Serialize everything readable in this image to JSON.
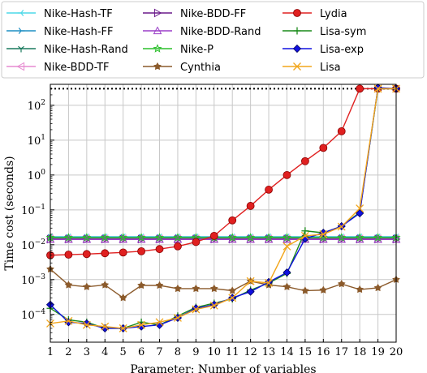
{
  "chart_data": {
    "type": "line",
    "xlabel": "Parameter: Number of variables",
    "ylabel": "Time cost (seconds)",
    "yscale": "log",
    "xlim": [
      1,
      20
    ],
    "ylim": [
      1.6e-05,
      400
    ],
    "grid": true,
    "legend_position": "top",
    "x_ticks": [
      1,
      2,
      3,
      4,
      5,
      6,
      7,
      8,
      9,
      10,
      11,
      12,
      13,
      14,
      15,
      16,
      17,
      18,
      19,
      20
    ],
    "y_ticks": [
      {
        "value": 0.0001,
        "base": "10",
        "exp": "−4"
      },
      {
        "value": 0.001,
        "base": "10",
        "exp": "−3"
      },
      {
        "value": 0.01,
        "base": "10",
        "exp": "−2"
      },
      {
        "value": 0.1,
        "base": "10",
        "exp": "−1"
      },
      {
        "value": 1,
        "base": "10",
        "exp": "0"
      },
      {
        "value": 10,
        "base": "10",
        "exp": "1"
      },
      {
        "value": 100,
        "base": "10",
        "exp": "2"
      }
    ],
    "timeout_line": {
      "y": 300,
      "style": "dotted",
      "color": "#000000"
    },
    "x": [
      1,
      2,
      3,
      4,
      5,
      6,
      7,
      8,
      9,
      10,
      11,
      12,
      13,
      14,
      15,
      16,
      17,
      18,
      19,
      20
    ],
    "series": [
      {
        "name": "Nike-Hash-TF",
        "color": "#4dd9e8",
        "marker": "tri_left",
        "values": [
          0.017,
          0.017,
          0.017,
          0.017,
          0.017,
          0.017,
          0.017,
          0.017,
          0.017,
          0.017,
          0.017,
          0.017,
          0.017,
          0.017,
          0.017,
          0.017,
          0.017,
          0.017,
          0.017,
          0.017
        ]
      },
      {
        "name": "Nike-Hash-FF",
        "color": "#1f8fc4",
        "marker": "tri_right",
        "values": [
          0.0165,
          0.0165,
          0.0165,
          0.0165,
          0.0165,
          0.0165,
          0.0165,
          0.0165,
          0.0165,
          0.0165,
          0.0165,
          0.0165,
          0.0165,
          0.0165,
          0.0165,
          0.0165,
          0.0165,
          0.0165,
          0.0165,
          0.0165
        ]
      },
      {
        "name": "Nike-Hash-Rand",
        "color": "#1a7a5e",
        "marker": "tri_down",
        "values": [
          0.0155,
          0.0155,
          0.0155,
          0.0155,
          0.0155,
          0.0155,
          0.0155,
          0.0155,
          0.0155,
          0.0155,
          0.0155,
          0.0155,
          0.0155,
          0.0155,
          0.0155,
          0.0155,
          0.0155,
          0.0155,
          0.0155,
          0.0155
        ]
      },
      {
        "name": "Nike-BDD-TF",
        "color": "#e68ad0",
        "marker": "triangle_left",
        "values": [
          0.0148,
          0.0148,
          0.0148,
          0.0148,
          0.0148,
          0.0148,
          0.0148,
          0.0148,
          0.0148,
          0.0148,
          0.0148,
          0.0148,
          0.0148,
          0.0148,
          0.0148,
          0.0148,
          0.0148,
          0.0148,
          0.0148,
          0.0148
        ]
      },
      {
        "name": "Nike-BDD-FF",
        "color": "#6a1a8a",
        "marker": "triangle_right",
        "values": [
          0.0145,
          0.0145,
          0.0145,
          0.0145,
          0.0145,
          0.0145,
          0.0145,
          0.0145,
          0.0145,
          0.0145,
          0.0145,
          0.0145,
          0.0145,
          0.0145,
          0.0145,
          0.0145,
          0.0145,
          0.0145,
          0.0145,
          0.0145
        ]
      },
      {
        "name": "Nike-BDD-Rand",
        "color": "#9b3fc8",
        "marker": "triangle_up",
        "values": [
          0.0142,
          0.0142,
          0.0142,
          0.0142,
          0.0142,
          0.0142,
          0.0142,
          0.0142,
          0.0142,
          0.0142,
          0.0142,
          0.0142,
          0.0142,
          0.0142,
          0.0142,
          0.0142,
          0.0142,
          0.0142,
          0.0142,
          0.0142
        ]
      },
      {
        "name": "Nike-P",
        "color": "#2bbf2b",
        "marker": "star",
        "values": [
          0.016,
          0.016,
          0.016,
          0.016,
          0.016,
          0.016,
          0.016,
          0.016,
          0.016,
          0.016,
          0.016,
          0.016,
          0.016,
          0.016,
          0.016,
          0.016,
          0.016,
          0.016,
          0.016,
          0.016
        ]
      },
      {
        "name": "Cynthia",
        "color": "#8b5a2b",
        "marker": "pentagon_star",
        "values": [
          0.002,
          0.0007,
          0.00062,
          0.0007,
          0.0003,
          0.00068,
          0.00068,
          0.00055,
          0.00055,
          0.00055,
          0.00048,
          0.0009,
          0.0007,
          0.00062,
          0.00048,
          0.0005,
          0.00075,
          0.00052,
          0.00058,
          0.001
        ]
      },
      {
        "name": "Lydia",
        "color": "#e02020",
        "marker": "circle_star",
        "values": [
          0.005,
          0.0052,
          0.0054,
          0.0057,
          0.006,
          0.0065,
          0.0075,
          0.009,
          0.012,
          0.018,
          0.05,
          0.13,
          0.38,
          1.0,
          2.5,
          6.0,
          18,
          300,
          300,
          300
        ]
      },
      {
        "name": "Lisa-sym",
        "color": "#1a8a1a",
        "marker": "plus",
        "values": [
          0.00015,
          7e-05,
          6e-05,
          4e-05,
          4e-05,
          6e-05,
          5e-05,
          9e-05,
          0.00016,
          0.00021,
          0.00028,
          0.0005,
          0.0008,
          0.0015,
          0.025,
          0.022,
          0.034,
          0.085,
          300,
          300
        ]
      },
      {
        "name": "Lisa-exp",
        "color": "#1010e0",
        "marker": "diamond",
        "values": [
          0.00019,
          6e-05,
          5.5e-05,
          4e-05,
          4e-05,
          4.5e-05,
          5e-05,
          8e-05,
          0.00015,
          0.00019,
          0.0003,
          0.00045,
          0.00085,
          0.0016,
          0.015,
          0.022,
          0.034,
          0.08,
          320,
          300
        ]
      },
      {
        "name": "Lisa",
        "color": "#f2a51a",
        "marker": "x",
        "values": [
          5.5e-05,
          6.5e-05,
          5e-05,
          4.5e-05,
          4e-05,
          5e-05,
          6e-05,
          8e-05,
          0.00014,
          0.00018,
          0.0003,
          0.0009,
          0.0008,
          0.009,
          0.018,
          0.02,
          0.033,
          0.11,
          300,
          300
        ]
      }
    ]
  }
}
